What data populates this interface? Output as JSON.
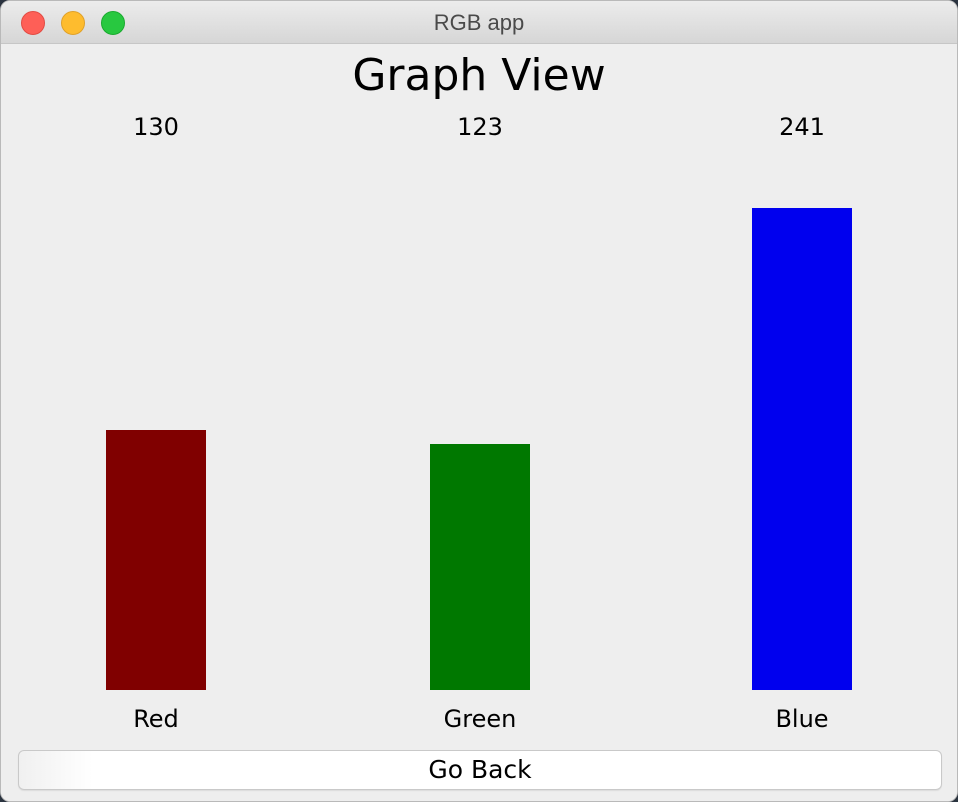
{
  "window": {
    "title": "RGB app"
  },
  "page": {
    "title": "Graph View"
  },
  "chart_data": {
    "type": "bar",
    "categories": [
      "Red",
      "Green",
      "Blue"
    ],
    "values": [
      130,
      123,
      241
    ],
    "colors": [
      "#800000",
      "#007800",
      "#0000ee"
    ],
    "ylim": [
      0,
      255
    ]
  },
  "actions": {
    "go_back_label": "Go Back"
  }
}
